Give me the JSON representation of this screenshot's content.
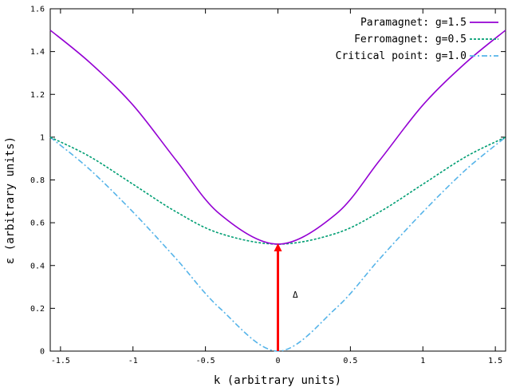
{
  "chart_data": {
    "type": "line",
    "title": "",
    "xlabel": "k (arbitrary units)",
    "ylabel": "ε (arbitrary units)",
    "xlim": [
      -1.5708,
      1.5708
    ],
    "ylim": [
      0,
      1.6
    ],
    "xticks": [
      -1.5,
      -1,
      -0.5,
      0,
      0.5,
      1,
      1.5
    ],
    "xtick_labels": [
      "-1.5",
      "-1",
      "-0.5",
      "0",
      "0.5",
      "1",
      "1.5"
    ],
    "yticks": [
      0,
      0.2,
      0.4,
      0.6,
      0.8,
      1,
      1.2,
      1.4,
      1.6
    ],
    "ytick_labels": [
      "0",
      "0.2",
      "0.4",
      "0.6",
      "0.8",
      "1",
      "1.2",
      "1.4",
      "1.6"
    ],
    "grid": false,
    "legend_position": "top-right",
    "series": [
      {
        "name": "Paramagnet: g=1.5",
        "color": "#9400d3",
        "style": "solid",
        "x": [
          -1.5708,
          -1.3,
          -1.0,
          -0.7,
          -0.4,
          0.0,
          0.4,
          0.7,
          1.0,
          1.3,
          1.5708
        ],
        "y": [
          1.5,
          1.35,
          1.15,
          0.89,
          0.64,
          0.5,
          0.64,
          0.89,
          1.15,
          1.35,
          1.5
        ]
      },
      {
        "name": "Ferromagnet: g=0.5",
        "color": "#009e73",
        "style": "dotted",
        "x": [
          -1.5708,
          -1.3,
          -1.0,
          -0.7,
          -0.4,
          0.0,
          0.4,
          0.7,
          1.0,
          1.3,
          1.5708
        ],
        "y": [
          1.0,
          0.91,
          0.78,
          0.65,
          0.55,
          0.5,
          0.55,
          0.65,
          0.78,
          0.91,
          1.0
        ]
      },
      {
        "name": "Critical point: g=1.0",
        "color": "#56b4e9",
        "style": "dash-dot",
        "x": [
          -1.5708,
          -1.3,
          -1.0,
          -0.7,
          -0.4,
          0.0,
          0.4,
          0.7,
          1.0,
          1.3,
          1.5708
        ],
        "y": [
          1.0,
          0.85,
          0.65,
          0.43,
          0.2,
          0.0,
          0.2,
          0.43,
          0.65,
          0.85,
          1.0
        ]
      }
    ],
    "annotations": [
      {
        "type": "arrow",
        "from": [
          0,
          0
        ],
        "to": [
          0,
          0.5
        ],
        "color": "#ff0000",
        "label": "Δ",
        "label_pos": [
          0.12,
          0.25
        ]
      }
    ]
  }
}
